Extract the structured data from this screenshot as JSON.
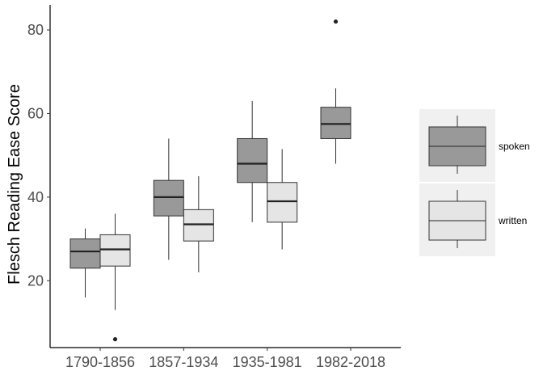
{
  "chart_data": {
    "type": "boxplot",
    "title": "",
    "xlabel": "",
    "ylabel": "Flesch Reading Ease Score",
    "ylim": [
      4,
      86
    ],
    "yticks": [
      20,
      40,
      60,
      80
    ],
    "grid": false,
    "legend_position": "right",
    "categories": [
      "1790-1856",
      "1857-1934",
      "1935-1981",
      "1982-2018"
    ],
    "series": [
      {
        "name": "spoken",
        "color": "#999999",
        "boxes": [
          {
            "category": "1790-1856",
            "whisker_low": 16,
            "q1": 23,
            "median": 27,
            "q3": 30,
            "whisker_high": 32.5,
            "outliers": []
          },
          {
            "category": "1857-1934",
            "whisker_low": 25,
            "q1": 35.5,
            "median": 40,
            "q3": 44,
            "whisker_high": 54,
            "outliers": []
          },
          {
            "category": "1935-1981",
            "whisker_low": 34,
            "q1": 43.5,
            "median": 48,
            "q3": 54,
            "whisker_high": 63,
            "outliers": []
          },
          {
            "category": "1982-2018",
            "whisker_low": 48,
            "q1": 54,
            "median": 57.5,
            "q3": 61.5,
            "whisker_high": 66,
            "outliers": [
              82
            ]
          }
        ]
      },
      {
        "name": "written",
        "color": "#e5e5e5",
        "boxes": [
          {
            "category": "1790-1856",
            "whisker_low": 13,
            "q1": 23.5,
            "median": 27.5,
            "q3": 31,
            "whisker_high": 36,
            "outliers": [
              6
            ]
          },
          {
            "category": "1857-1934",
            "whisker_low": 22,
            "q1": 29.5,
            "median": 33.5,
            "q3": 37,
            "whisker_high": 45,
            "outliers": []
          },
          {
            "category": "1935-1981",
            "whisker_low": 27.5,
            "q1": 34,
            "median": 39,
            "q3": 43.5,
            "whisker_high": 51.5,
            "outliers": []
          }
        ]
      }
    ]
  }
}
